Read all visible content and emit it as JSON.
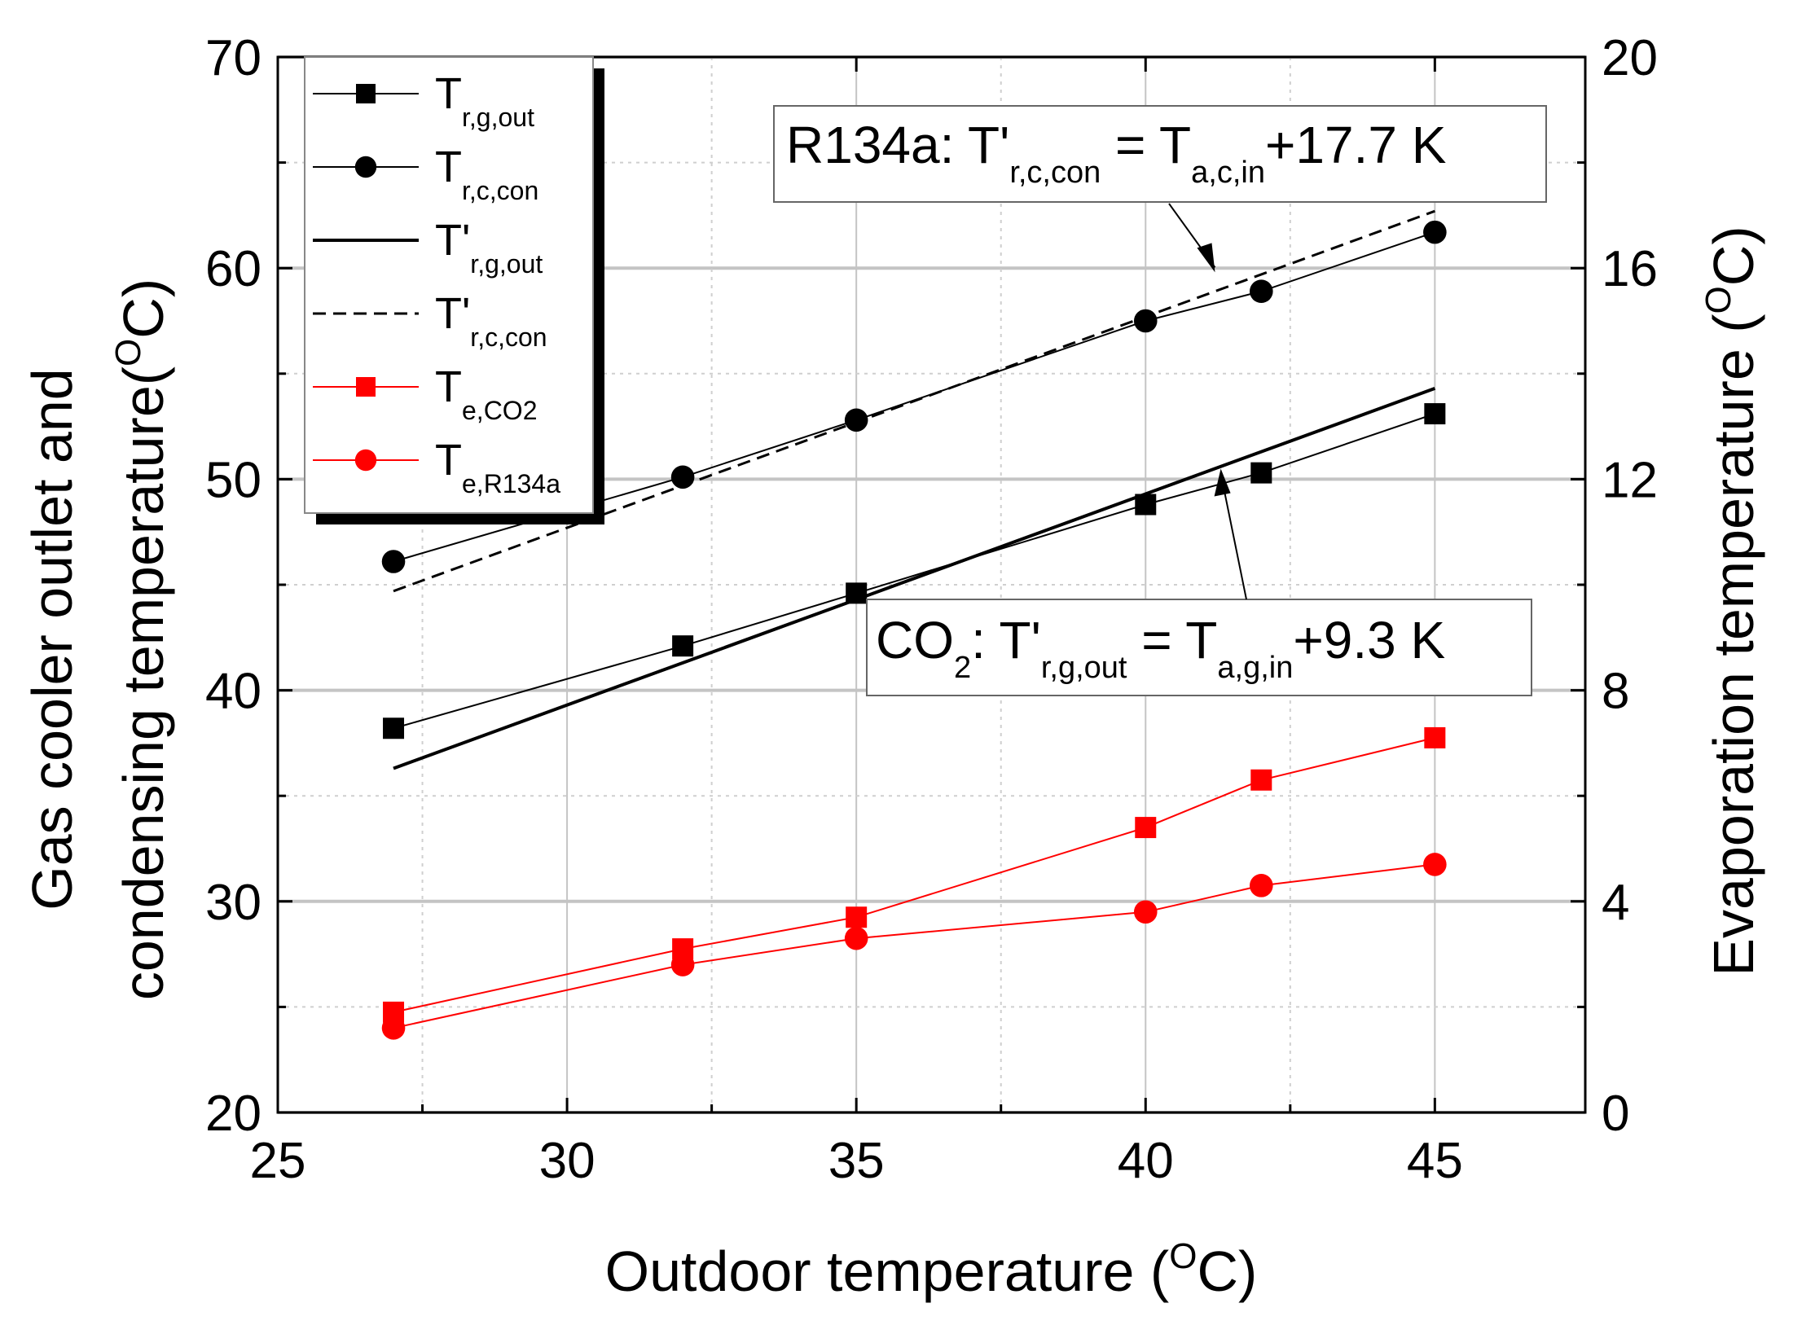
{
  "chart_data": {
    "type": "line",
    "title": "",
    "xlabel": "Outdoor temperature (",
    "xlabel_sup": "O",
    "xlabel_end": "C)",
    "ylabel_left_line1": "Gas cooler outlet and",
    "ylabel_left_line2": "condensing temperature(",
    "ylabel_left_sup": "O",
    "ylabel_left_end": "C)",
    "ylabel_right": "Evaporation temperature (",
    "ylabel_right_sup": "O",
    "ylabel_right_end": "C)",
    "xlim": [
      25,
      47.6
    ],
    "ylim_left": [
      20,
      70
    ],
    "ylim_right": [
      0,
      20
    ],
    "x_ticks": [
      "25",
      "30",
      "35",
      "40",
      "45"
    ],
    "y_left_ticks": [
      "20",
      "30",
      "40",
      "50",
      "60",
      "70"
    ],
    "y_right_ticks": [
      "0",
      "4",
      "8",
      "12",
      "16",
      "20"
    ],
    "grid": true,
    "legend_position": "top-left",
    "series": [
      {
        "name": "T",
        "sub": "r,g,out",
        "axis": "left",
        "marker": "square",
        "line": "solid-thin",
        "color": "#000000",
        "x": [
          27,
          32,
          35,
          40,
          42,
          45
        ],
        "values": [
          38.2,
          42.1,
          44.6,
          48.8,
          50.3,
          53.1
        ]
      },
      {
        "name": "T",
        "sub": "r,c,con",
        "axis": "left",
        "marker": "circle",
        "line": "solid-thin",
        "color": "#000000",
        "x": [
          27,
          32,
          35,
          40,
          42,
          45
        ],
        "values": [
          46.1,
          50.1,
          52.8,
          57.5,
          58.9,
          61.7
        ]
      },
      {
        "name": "T'",
        "sub": "r,g,out",
        "axis": "left",
        "marker": "none",
        "line": "solid-thick",
        "color": "#000000",
        "x": [
          27,
          45
        ],
        "values": [
          36.3,
          54.3
        ]
      },
      {
        "name": "T'",
        "sub": "r,c,con",
        "axis": "left",
        "marker": "none",
        "line": "dashed",
        "color": "#000000",
        "x": [
          27,
          45
        ],
        "values": [
          44.7,
          62.7
        ]
      },
      {
        "name": "T",
        "sub": "e,CO2",
        "axis": "right",
        "marker": "square",
        "line": "solid-thin",
        "color": "#ff0000",
        "x": [
          27,
          32,
          35,
          40,
          42,
          45
        ],
        "values": [
          1.9,
          3.1,
          3.7,
          5.4,
          6.3,
          7.1
        ]
      },
      {
        "name": "T",
        "sub": "e,R134a",
        "axis": "right",
        "marker": "circle",
        "line": "solid-thin",
        "color": "#ff0000",
        "x": [
          27,
          32,
          35,
          40,
          42,
          45
        ],
        "values": [
          1.6,
          2.8,
          3.3,
          3.8,
          4.3,
          4.7
        ]
      }
    ],
    "annotations": [
      {
        "prefix": "R134a: T'",
        "sub1": "r,c,con",
        "mid": " = T",
        "sub2": "a,c,in",
        "suffix": "+17.7 K",
        "arrow_to": [
          41.2,
          59.8
        ]
      },
      {
        "prefix": "CO",
        "sub0": "2",
        "mid0": ": T'",
        "sub1": "r,g,out",
        "mid": " = T",
        "sub2": "a,g,in",
        "suffix": "+9.3 K",
        "arrow_to": [
          41.3,
          50.5
        ]
      }
    ]
  }
}
